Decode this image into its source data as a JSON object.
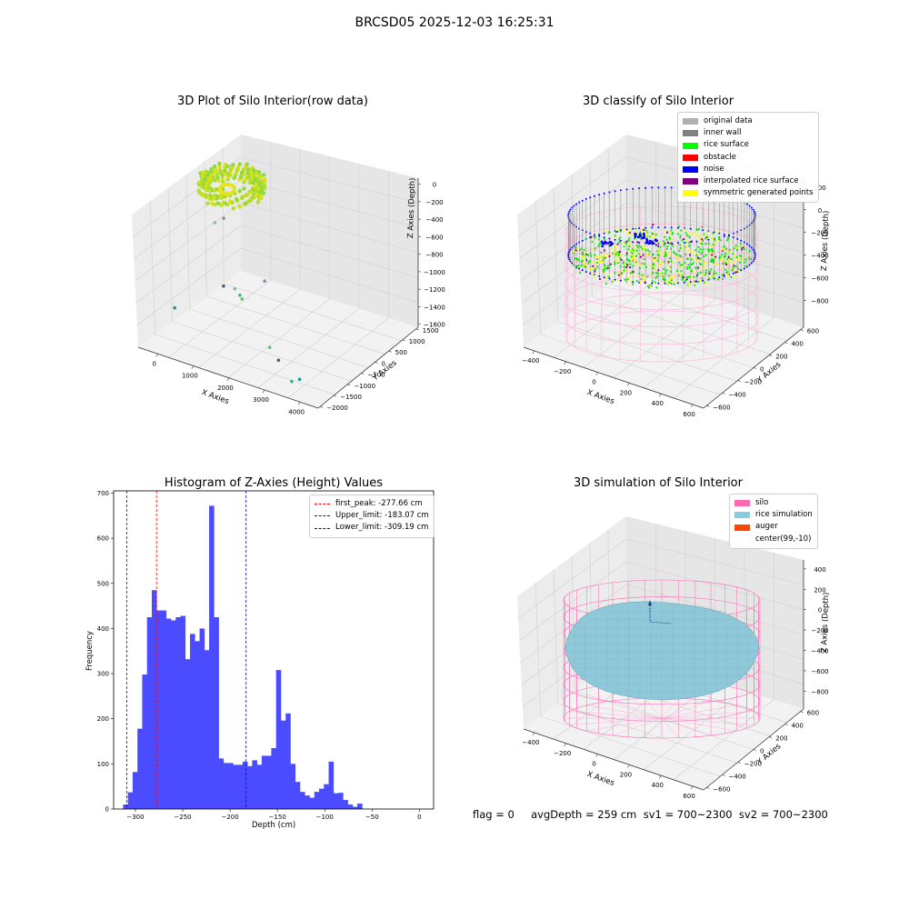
{
  "figure_title": "BRCSD05 2025-12-03 16:25:31",
  "status_line": "flag = 0     avgDepth = 259 cm  sv1 = 700~2300  sv2 = 700~2300",
  "chart_data": [
    {
      "type": "scatter",
      "title": "3D Plot of Silo Interior(row data)",
      "xlabel": "X Axies",
      "ylabel": "Y Axies",
      "zlabel": "Z Axies (Depth)",
      "x_ticks": [
        "0",
        "1000",
        "2000",
        "3000",
        "4000"
      ],
      "y_ticks": [
        "1500",
        "1000",
        "500",
        "0",
        "−500",
        "−1000",
        "−1500",
        "−2000"
      ],
      "z_ticks": [
        "0",
        "−200",
        "−400",
        "−600",
        "−800",
        "−1000",
        "−1200",
        "−1400",
        "−1600"
      ],
      "xlim": [
        -600,
        4500
      ],
      "ylim": [
        -2200,
        1600
      ],
      "zlim": [
        -1650,
        50
      ],
      "colormap": "viridis",
      "points": [
        {
          "x": 900,
          "y": -300,
          "z": -1300
        },
        {
          "x": 800,
          "y": -250,
          "z": -1280
        },
        {
          "x": -100,
          "y": -1500,
          "z": -1250
        },
        {
          "x": 600,
          "y": -600,
          "z": -1100
        },
        {
          "x": 1000,
          "y": -700,
          "z": -1050
        },
        {
          "x": 1700,
          "y": -500,
          "z": -900
        },
        {
          "x": 2600,
          "y": -1500,
          "z": -1350
        },
        {
          "x": 3600,
          "y": -2000,
          "z": -1500
        },
        {
          "x": 3900,
          "y": -2100,
          "z": -1400
        },
        {
          "x": 3000,
          "y": -1700,
          "z": -1400
        },
        {
          "x": 200,
          "y": -400,
          "z": -400
        },
        {
          "x": 300,
          "y": -200,
          "z": -380
        }
      ]
    },
    {
      "type": "scatter",
      "title": "3D classify of Silo Interior",
      "xlabel": "X Axies",
      "ylabel": "Y Axies",
      "zlabel": "Z Axies (Depth)",
      "x_ticks": [
        "−400",
        "−200",
        "0",
        "200",
        "400",
        "600"
      ],
      "y_ticks": [
        "600",
        "400",
        "200",
        "0",
        "−200",
        "−400",
        "−600"
      ],
      "z_ticks": [
        "200",
        "0",
        "−200",
        "−400",
        "−600",
        "−800"
      ],
      "legend": [
        {
          "label": "original data",
          "color": "#b0b0b0"
        },
        {
          "label": "inner wall",
          "color": "#808080"
        },
        {
          "label": "rice surface",
          "color": "#00ff00"
        },
        {
          "label": "obstacle",
          "color": "#ff0000"
        },
        {
          "label": "noise",
          "color": "#0000ff"
        },
        {
          "label": "interpolated rice surface",
          "color": "#800080"
        },
        {
          "label": "symmetric generated points",
          "color": "#ffff00"
        }
      ]
    },
    {
      "type": "bar",
      "title": "Histogram of Z-Axies (Height) Values",
      "xlabel": "Depth (cm)",
      "ylabel": "Frequency",
      "xlim": [
        -323,
        15
      ],
      "ylim": [
        0,
        705
      ],
      "x_ticks": [
        -300,
        -250,
        -200,
        -150,
        -100,
        -50,
        0
      ],
      "y_ticks": [
        0,
        100,
        200,
        300,
        400,
        500,
        600,
        700
      ],
      "bar_color": "#4b4bff",
      "bin_width": 5.05,
      "bin_start": -313,
      "values": [
        10,
        37,
        82,
        178,
        298,
        425,
        485,
        440,
        440,
        422,
        418,
        425,
        428,
        332,
        388,
        372,
        400,
        352,
        672,
        425,
        112,
        102,
        102,
        98,
        98,
        105,
        95,
        108,
        98,
        118,
        118,
        135,
        308,
        196,
        212,
        100,
        60,
        38,
        30,
        25,
        38,
        45,
        55,
        105,
        35,
        36,
        20,
        10,
        5,
        12
      ],
      "reference_lines": [
        {
          "label": "first_peak: -277.66 cm",
          "x": -277.66,
          "color": "#ff0000"
        },
        {
          "label": "Upper_limit: -183.07 cm",
          "x": -183.07,
          "color": "#0000ff"
        },
        {
          "label": "Lower_limit: -309.19 cm",
          "x": -309.19,
          "color": "#0000ff"
        }
      ]
    },
    {
      "type": "area",
      "title": "3D simulation of Silo Interior",
      "xlabel": "X Axies",
      "ylabel": "Y Axies",
      "zlabel": "Z Axies (Depth)",
      "x_ticks": [
        "−400",
        "−200",
        "0",
        "200",
        "400",
        "600"
      ],
      "y_ticks": [
        "600",
        "400",
        "200",
        "0",
        "−200",
        "−400",
        "−600"
      ],
      "z_ticks": [
        "400",
        "200",
        "0",
        "−200",
        "−400",
        "−600",
        "−800"
      ],
      "legend": [
        {
          "label": "silo",
          "color": "#ff69b4"
        },
        {
          "label": "rice simulation",
          "color": "#87cedf"
        },
        {
          "label": "auger",
          "color": "#ff4500"
        },
        {
          "label": "center(99,-10)",
          "color": "#ffffff"
        }
      ]
    }
  ]
}
